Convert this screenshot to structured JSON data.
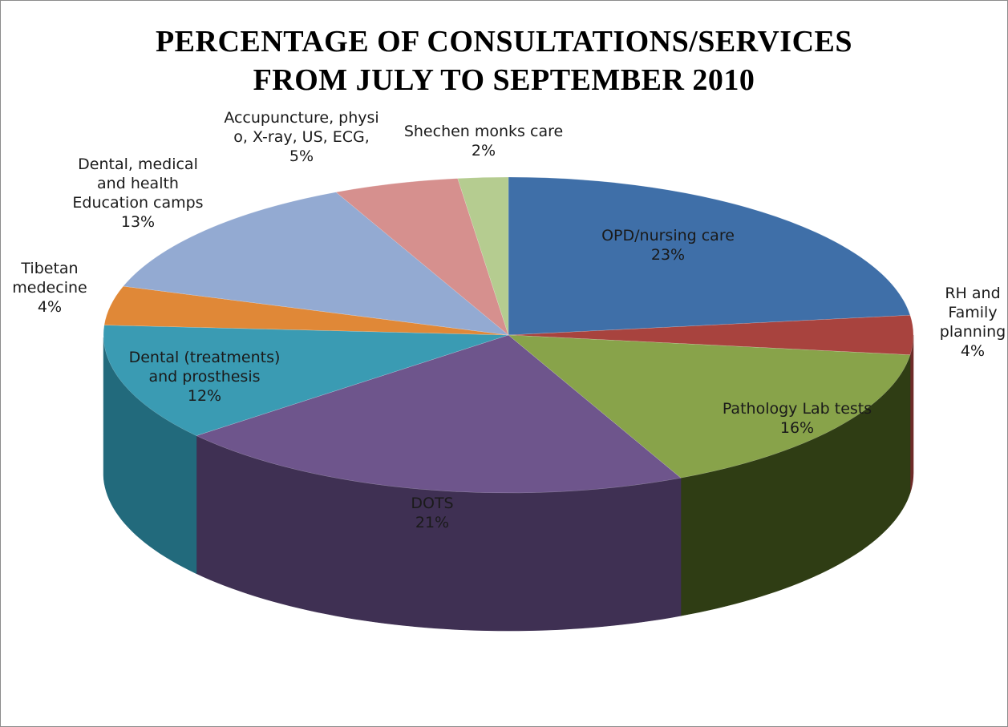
{
  "chart_data": {
    "type": "pie",
    "title": [
      "PERCENTAGE OF CONSULTATIONS/SERVICES",
      "FROM JULY TO SEPTEMBER 2010"
    ],
    "start_angle_deg": 90,
    "direction": "clockwise",
    "style": "3d",
    "slices": [
      {
        "label": [
          "OPD/nursing care"
        ],
        "value": 23,
        "display": "23%",
        "color": "#3F6FA8",
        "side_color": "#2A4A70"
      },
      {
        "label": [
          "RH and",
          "Family",
          "planning"
        ],
        "value": 4,
        "display": "4%",
        "color": "#A8433E",
        "side_color": "#6E2B28"
      },
      {
        "label": [
          "Pathology Lab tests"
        ],
        "value": 16,
        "display": "16%",
        "color": "#88A34A",
        "side_color": "#2F3D14"
      },
      {
        "label": [
          "DOTS"
        ],
        "value": 21,
        "display": "21%",
        "color": "#6E558C",
        "side_color": "#3F3053"
      },
      {
        "label": [
          "Dental (treatments)",
          "and prosthesis"
        ],
        "value": 12,
        "display": "12%",
        "color": "#3A9BB3",
        "side_color": "#226A7C"
      },
      {
        "label": [
          "Tibetan",
          "medecine"
        ],
        "value": 4,
        "display": "4%",
        "color": "#E08837",
        "side_color": "#A35C1E"
      },
      {
        "label": [
          "Dental, medical",
          "and health",
          "Education camps"
        ],
        "value": 13,
        "display": "13%",
        "color": "#93AAD2",
        "side_color": "#6A7E9E"
      },
      {
        "label": [
          "Accupuncture, physi",
          "o, X-ray, US, ECG,"
        ],
        "value": 5,
        "display": "5%",
        "color": "#D6908E",
        "side_color": "#A06462"
      },
      {
        "label": [
          "Shechen monks care"
        ],
        "value": 2,
        "display": "2%",
        "color": "#B5CC90",
        "side_color": "#7F9160"
      }
    ]
  }
}
